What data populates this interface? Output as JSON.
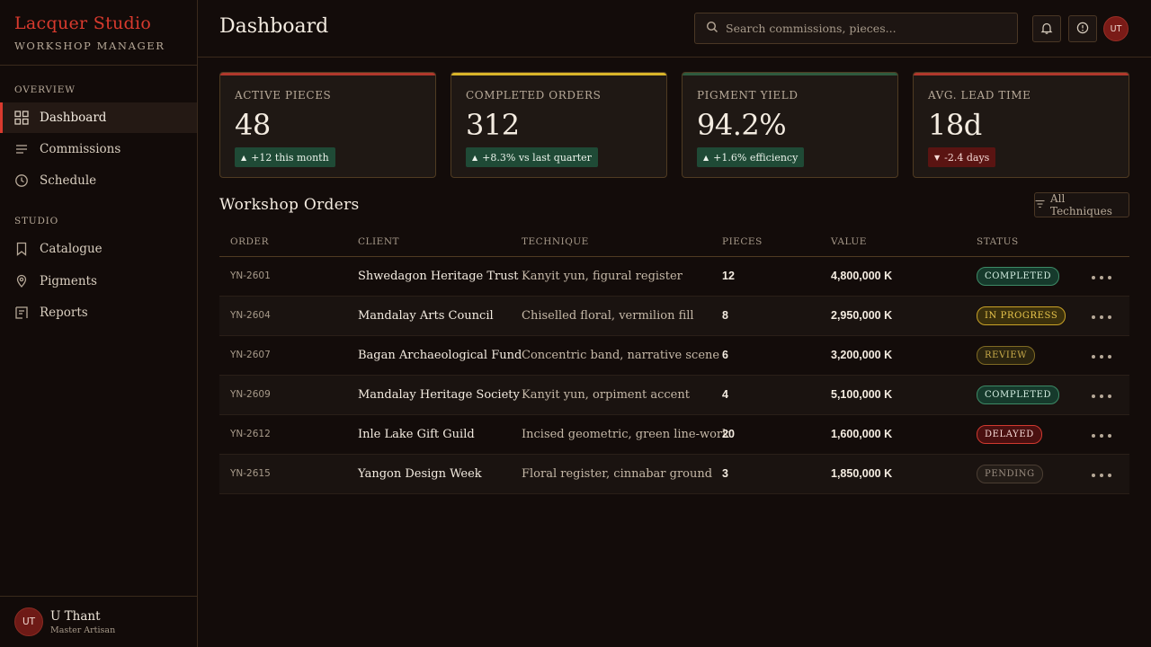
{
  "brand": {
    "title": "Lacquer Studio",
    "subtitle": "WORKSHOP MANAGER"
  },
  "sidebar": {
    "sections": [
      {
        "title": "OVERVIEW"
      },
      {
        "title": "STUDIO"
      }
    ],
    "items": [
      {
        "label": "Dashboard",
        "icon": "grid-icon",
        "active": true
      },
      {
        "label": "Commissions",
        "icon": "list-icon"
      },
      {
        "label": "Schedule",
        "icon": "clock-icon"
      },
      {
        "label": "Catalogue",
        "icon": "bookmark-icon"
      },
      {
        "label": "Pigments",
        "icon": "pin-icon"
      },
      {
        "label": "Reports",
        "icon": "report-icon"
      }
    ],
    "user": {
      "initials": "UT",
      "name": "U Thant",
      "role": "Master Artisan"
    }
  },
  "header": {
    "title": "Dashboard",
    "search_placeholder": "Search commissions, pieces...",
    "avatar_initials": "UT"
  },
  "stats": [
    {
      "label": "ACTIVE PIECES",
      "value": "48",
      "delta": "+12 this month",
      "trend": "up",
      "accent": "#b0382c"
    },
    {
      "label": "COMPLETED ORDERS",
      "value": "312",
      "delta": "+8.3% vs last quarter",
      "trend": "up",
      "accent": "#d8b52a"
    },
    {
      "label": "PIGMENT YIELD",
      "value": "94.2%",
      "delta": "+1.6% efficiency",
      "trend": "up",
      "accent": "#2f5a3e"
    },
    {
      "label": "AVG. LEAD TIME",
      "value": "18d",
      "delta": "-2.4 days",
      "trend": "down",
      "accent": "#b0382c"
    }
  ],
  "orders": {
    "title": "Workshop Orders",
    "filter_label": "All Techniques",
    "columns": [
      "ORDER",
      "CLIENT",
      "TECHNIQUE",
      "PIECES",
      "VALUE",
      "STATUS"
    ],
    "rows": [
      {
        "order": "YN-2601",
        "client": "Shwedagon Heritage Trust",
        "technique": "Kanyit yun, figural register",
        "pieces": "12",
        "value": "4,800,000 K",
        "status": "COMPLETED",
        "status_class": "b-completed"
      },
      {
        "order": "YN-2604",
        "client": "Mandalay Arts Council",
        "technique": "Chiselled floral, vermilion fill",
        "pieces": "8",
        "value": "2,950,000 K",
        "status": "IN PROGRESS",
        "status_class": "b-progress"
      },
      {
        "order": "YN-2607",
        "client": "Bagan Archaeological Fund",
        "technique": "Concentric band, narrative scene",
        "pieces": "6",
        "value": "3,200,000 K",
        "status": "REVIEW",
        "status_class": "b-review"
      },
      {
        "order": "YN-2609",
        "client": "Mandalay Heritage Society",
        "technique": "Kanyit yun, orpiment accent",
        "pieces": "4",
        "value": "5,100,000 K",
        "status": "COMPLETED",
        "status_class": "b-completed"
      },
      {
        "order": "YN-2612",
        "client": "Inle Lake Gift Guild",
        "technique": "Incised geometric, green line-work",
        "pieces": "20",
        "value": "1,600,000 K",
        "status": "DELAYED",
        "status_class": "b-delayed"
      },
      {
        "order": "YN-2615",
        "client": "Yangon Design Week",
        "technique": "Floral register, cinnabar ground",
        "pieces": "3",
        "value": "1,850,000 K",
        "status": "PENDING",
        "status_class": "b-pending"
      }
    ]
  }
}
